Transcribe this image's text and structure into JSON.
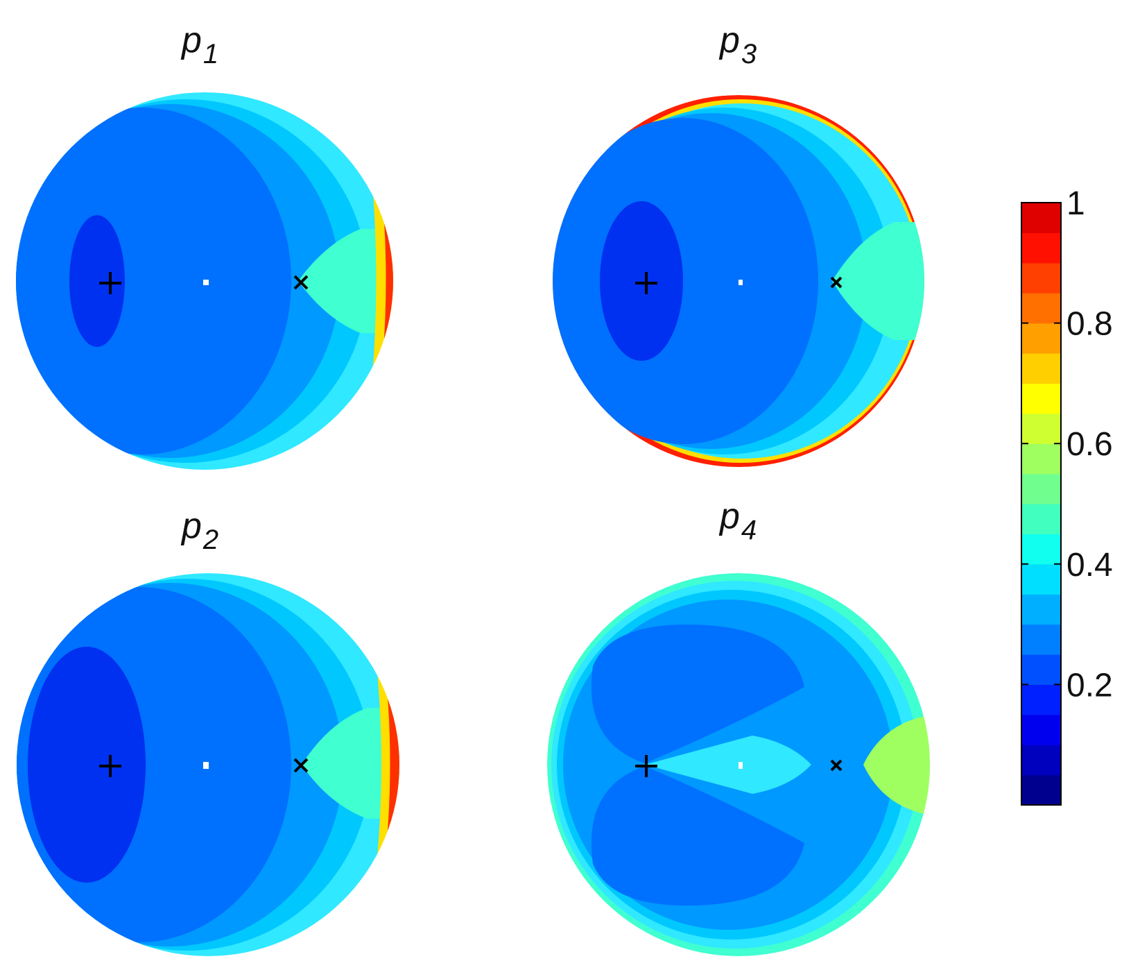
{
  "chart_data": [
    {
      "type": "heatmap",
      "title": "p",
      "title_subscript": "1",
      "markers": [
        {
          "symbol": "+"
        },
        {
          "symbol": "·"
        },
        {
          "symbol": "×"
        }
      ],
      "colorbar_range": [
        0,
        1
      ]
    },
    {
      "type": "heatmap",
      "title": "p",
      "title_subscript": "2",
      "markers": [
        {
          "symbol": "+"
        },
        {
          "symbol": "·"
        },
        {
          "symbol": "×"
        }
      ],
      "colorbar_range": [
        0,
        1
      ]
    },
    {
      "type": "heatmap",
      "title": "p",
      "title_subscript": "3",
      "markers": [
        {
          "symbol": "+"
        },
        {
          "symbol": "·"
        },
        {
          "symbol": "×"
        }
      ],
      "colorbar_range": [
        0,
        1
      ]
    },
    {
      "type": "heatmap",
      "title": "p",
      "title_subscript": "4",
      "markers": [
        {
          "symbol": "+"
        },
        {
          "symbol": "·"
        },
        {
          "symbol": "×"
        }
      ],
      "colorbar_range": [
        0,
        1
      ]
    }
  ],
  "colorbar": {
    "ticks": [
      "0.2",
      "0.4",
      "0.6",
      "0.8",
      "1"
    ],
    "tick_values": [
      0.2,
      0.4,
      0.6,
      0.8,
      1.0
    ],
    "range": [
      0,
      1
    ],
    "levels": 20,
    "colors": [
      "#00008f",
      "#0000bf",
      "#0000ef",
      "#0020ff",
      "#0050ff",
      "#0080ff",
      "#00afff",
      "#00dfff",
      "#10ffef",
      "#40ffbf",
      "#70ff8f",
      "#9fff60",
      "#cfff30",
      "#ffff00",
      "#ffcf00",
      "#ff9f00",
      "#ff7000",
      "#ff4000",
      "#ff1000",
      "#df0000"
    ]
  }
}
